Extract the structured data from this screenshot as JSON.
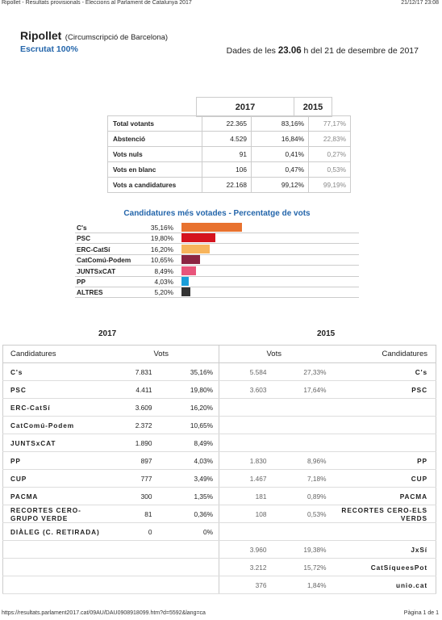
{
  "print_header": {
    "title": "Ripollet - Resultats provisionals - Eleccions al Parlament de Catalunya 2017",
    "datetime": "21/12/17 23:08"
  },
  "header": {
    "title": "Ripollet",
    "subtitle": "(Circumscripció de Barcelona)",
    "status": "Escrutat 100%",
    "date_prefix": "Dades de les",
    "time": "23.06",
    "date_suffix": "h del 21 de desembre de 2017"
  },
  "summary": {
    "columns": [
      "2017",
      "2015"
    ],
    "rows": [
      [
        "Total votants",
        "22.365",
        "83,16%",
        "77,17%"
      ],
      [
        "Abstenció",
        "4.529",
        "16,84%",
        "22,83%"
      ],
      [
        "Vots nuls",
        "91",
        "0,41%",
        "0,27%"
      ],
      [
        "Vots en blanc",
        "106",
        "0,47%",
        "0,53%"
      ],
      [
        "Vots a candidatures",
        "22.168",
        "99,12%",
        "99,19%"
      ]
    ]
  },
  "chart_data": {
    "type": "bar",
    "orientation": "horizontal",
    "title": "Candidatures més votades - Percentatge de vots",
    "categories": [
      "C's",
      "PSC",
      "ERC-CatSí",
      "CatComú-Podem",
      "JUNTSxCAT",
      "PP",
      "ALTRES"
    ],
    "values": [
      35.16,
      19.8,
      16.2,
      10.65,
      8.49,
      4.03,
      5.2
    ],
    "value_labels": [
      "35,16%",
      "19,80%",
      "16,20%",
      "10,65%",
      "8,49%",
      "4,03%",
      "5,20%"
    ],
    "colors": [
      "#e8722f",
      "#d5131e",
      "#f7b45c",
      "#8c2442",
      "#e8557b",
      "#1a9ed9",
      "#333333"
    ]
  },
  "results": {
    "years": [
      "2017",
      "2015"
    ],
    "columns": [
      "Candidatures",
      "Vots",
      "Vots",
      "Candidatures"
    ],
    "rows": [
      [
        "C's",
        "7.831",
        "35,16%",
        "5.584",
        "27,33%",
        "C's"
      ],
      [
        "PSC",
        "4.411",
        "19,80%",
        "3.603",
        "17,64%",
        "PSC"
      ],
      [
        "ERC-CatSí",
        "3.609",
        "16,20%",
        null,
        null,
        null
      ],
      [
        "CatComú-Podem",
        "2.372",
        "10,65%",
        null,
        null,
        null
      ],
      [
        "JUNTSxCAT",
        "1.890",
        "8,49%",
        null,
        null,
        null
      ],
      [
        "PP",
        "897",
        "4,03%",
        "1.830",
        "8,96%",
        "PP"
      ],
      [
        "CUP",
        "777",
        "3,49%",
        "1.467",
        "7,18%",
        "CUP"
      ],
      [
        "PACMA",
        "300",
        "1,35%",
        "181",
        "0,89%",
        "PACMA"
      ],
      [
        "RECORTES CERO-GRUPO VERDE",
        "81",
        "0,36%",
        "108",
        "0,53%",
        "RECORTES CERO-ELS VERDS"
      ],
      [
        "DIÀLEG (C. RETIRADA)",
        "0",
        "0%",
        null,
        null,
        null
      ],
      [
        null,
        null,
        null,
        "3.960",
        "19,38%",
        "JxSí"
      ],
      [
        null,
        null,
        null,
        "3.212",
        "15,72%",
        "CatSíqueesPot"
      ],
      [
        null,
        null,
        null,
        "376",
        "1,84%",
        "unio.cat"
      ]
    ]
  },
  "footer": {
    "url": "https://resultats.parlament2017.cat/09AU/DAU0908918099.htm?d=5592&lang=ca",
    "page": "Pàgina 1 de 1"
  }
}
